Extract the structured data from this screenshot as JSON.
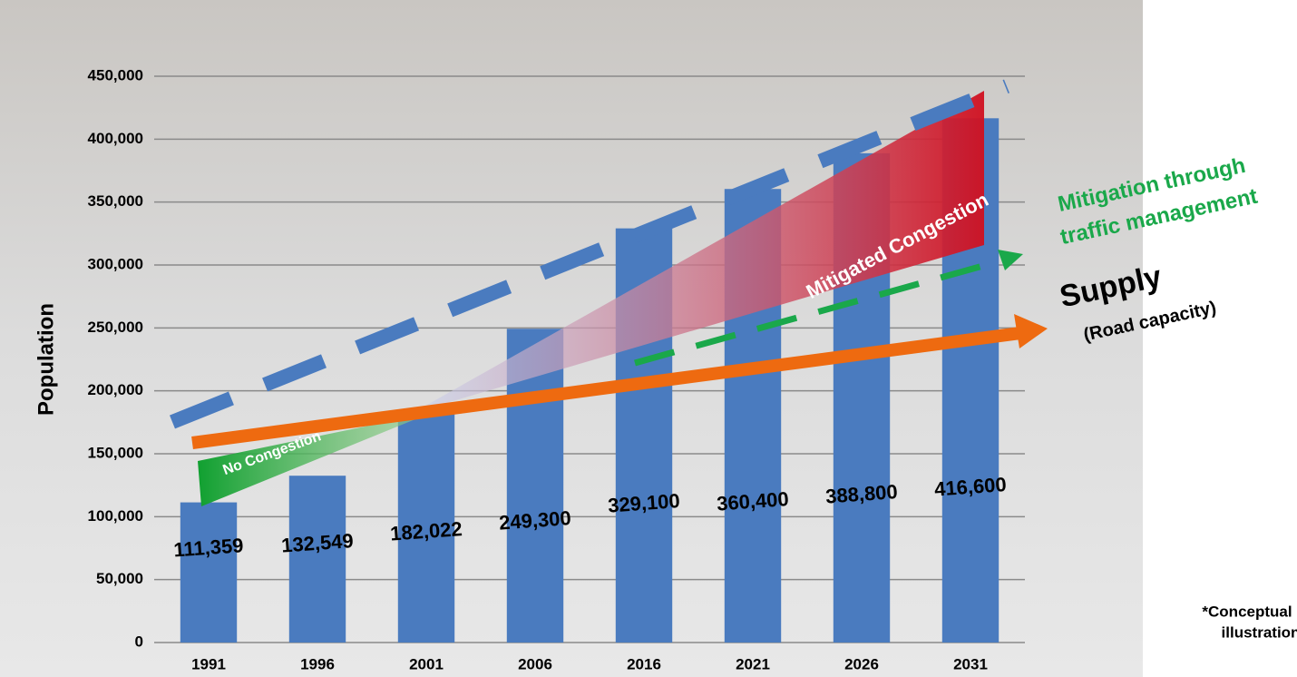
{
  "chart_data": {
    "type": "bar",
    "y_axis_label": "Population",
    "categories": [
      "1991",
      "1996",
      "2001",
      "2006",
      "2016",
      "2021",
      "2026",
      "2031"
    ],
    "values": [
      111359,
      132549,
      182022,
      249300,
      329100,
      360400,
      388800,
      416600
    ],
    "value_labels": [
      "111,359",
      "132,549",
      "182,022",
      "249,300",
      "329,100",
      "360,400",
      "388,800",
      "416,600"
    ],
    "color": "#4a7bbf",
    "ylim": [
      0,
      450000
    ],
    "yticks": [
      {
        "value": 0,
        "label": "0"
      },
      {
        "value": 50000,
        "label": "50,000"
      },
      {
        "value": 100000,
        "label": "100,000"
      },
      {
        "value": 150000,
        "label": "150,000"
      },
      {
        "value": 200000,
        "label": "200,000"
      },
      {
        "value": 250000,
        "label": "250,000"
      },
      {
        "value": 300000,
        "label": "300,000"
      },
      {
        "value": 350000,
        "label": "350,000"
      },
      {
        "value": 400000,
        "label": "400,000"
      },
      {
        "value": 450000,
        "label": "450,000"
      }
    ],
    "grid": true,
    "annotations": {
      "mitigated": "Mitigated Congestion",
      "none": "No Congestion",
      "mitigation_1": "Mitigation through",
      "mitigation_2": "traffic management",
      "supply": "Supply",
      "capacity": "(Road capacity)",
      "note_1": "*Conceptual",
      "note_2": "illustration"
    }
  }
}
